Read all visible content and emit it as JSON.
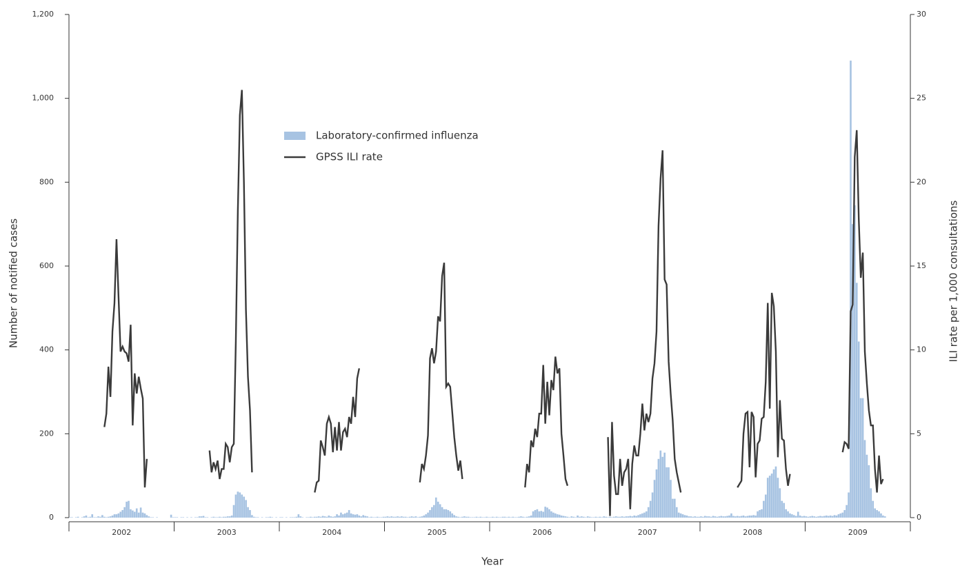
{
  "chart_data": {
    "type": "combo",
    "x_label": "Year",
    "y_label": "Number of notified cases",
    "y2_label": "ILI rate per 1,000 consultations",
    "categories": [
      "2002",
      "2003",
      "2004",
      "2005",
      "2006",
      "2007",
      "2008",
      "2009"
    ],
    "ylim": [
      0,
      1200
    ],
    "yticks": [
      0,
      200,
      400,
      600,
      800,
      {
        "value": 1000,
        "label": "1,000"
      },
      {
        "value": 1200,
        "label": "1,200"
      }
    ],
    "y2lim": [
      0,
      30
    ],
    "y2ticks": [
      0,
      5,
      10,
      15,
      20,
      25,
      30
    ],
    "series": [
      {
        "name": "Laboratory-confirmed influenza",
        "type": "bar",
        "color": "#a7c3e2",
        "values": [
          [
            1,
            1,
            0,
            1,
            2,
            0,
            1,
            3,
            5,
            1,
            2,
            8,
            1,
            1,
            3,
            2,
            6,
            2,
            1,
            2,
            3,
            5,
            8,
            8,
            10,
            14,
            18,
            25,
            38,
            40,
            20,
            17,
            14,
            22,
            12,
            24,
            12,
            10,
            6,
            3,
            1,
            1,
            0,
            1,
            0,
            0,
            0,
            0,
            0,
            0,
            7,
            1
          ],
          [
            1,
            1,
            0,
            1,
            1,
            0,
            1,
            0,
            1,
            0,
            1,
            1,
            3,
            3,
            4,
            1,
            1,
            0,
            1,
            2,
            1,
            1,
            2,
            1,
            2,
            2,
            3,
            3,
            5,
            30,
            55,
            62,
            60,
            55,
            50,
            42,
            25,
            18,
            6,
            2,
            1,
            1,
            0,
            1,
            0,
            1,
            1,
            2,
            1,
            0,
            1,
            0
          ],
          [
            1,
            1,
            0,
            1,
            0,
            1,
            1,
            1,
            2,
            8,
            3,
            1,
            0,
            1,
            1,
            2,
            1,
            2,
            2,
            3,
            2,
            4,
            3,
            2,
            5,
            3,
            2,
            3,
            8,
            5,
            12,
            8,
            10,
            12,
            18,
            10,
            8,
            7,
            8,
            5,
            3,
            6,
            4,
            3,
            1,
            2,
            1,
            1,
            2,
            1,
            1,
            2
          ],
          [
            2,
            3,
            2,
            3,
            2,
            2,
            3,
            2,
            3,
            2,
            2,
            1,
            2,
            3,
            2,
            3,
            1,
            2,
            3,
            5,
            8,
            12,
            18,
            25,
            30,
            48,
            38,
            32,
            25,
            20,
            20,
            18,
            15,
            10,
            6,
            3,
            2,
            1,
            2,
            3,
            2,
            2,
            1,
            1,
            1,
            2,
            1,
            2,
            1,
            1,
            2,
            1
          ],
          [
            1,
            2,
            1,
            2,
            1,
            1,
            2,
            2,
            1,
            2,
            1,
            2,
            1,
            1,
            2,
            3,
            2,
            1,
            2,
            3,
            5,
            15,
            18,
            20,
            15,
            16,
            14,
            26,
            24,
            20,
            15,
            12,
            10,
            8,
            7,
            5,
            4,
            3,
            2,
            1,
            3,
            2,
            1,
            5,
            2,
            3,
            2,
            1,
            3,
            2,
            1,
            1
          ],
          [
            2,
            1,
            2,
            1,
            3,
            2,
            1,
            2,
            1,
            2,
            3,
            2,
            2,
            3,
            2,
            3,
            3,
            4,
            3,
            5,
            4,
            6,
            8,
            10,
            12,
            15,
            25,
            40,
            60,
            90,
            115,
            140,
            160,
            145,
            155,
            120,
            120,
            90,
            45,
            45,
            25,
            12,
            10,
            8,
            6,
            5,
            3,
            3,
            2,
            3,
            2,
            2
          ],
          [
            3,
            2,
            4,
            3,
            3,
            2,
            4,
            3,
            2,
            3,
            4,
            3,
            3,
            4,
            5,
            10,
            4,
            3,
            4,
            3,
            4,
            5,
            3,
            4,
            5,
            5,
            6,
            5,
            15,
            18,
            20,
            40,
            55,
            95,
            100,
            105,
            115,
            122,
            95,
            70,
            40,
            35,
            20,
            15,
            10,
            8,
            6,
            4,
            14,
            5,
            3,
            4
          ],
          [
            3,
            2,
            3,
            4,
            3,
            2,
            3,
            4,
            3,
            4,
            5,
            4,
            5,
            4,
            6,
            5,
            8,
            10,
            12,
            18,
            30,
            60,
            1090,
            700,
            745,
            560,
            420,
            285,
            285,
            185,
            150,
            125,
            70,
            40,
            22,
            18,
            15,
            10,
            5,
            3,
            null,
            null,
            null,
            null,
            null,
            null,
            null,
            null,
            null,
            null,
            null,
            null
          ]
        ]
      },
      {
        "name": "GPSS ILI rate",
        "type": "line",
        "axis": "y2",
        "color": "#3a3a3a",
        "values": [
          [
            null,
            null,
            null,
            null,
            null,
            null,
            null,
            null,
            null,
            null,
            null,
            null,
            null,
            null,
            null,
            null,
            null,
            5.4,
            6.2,
            9.0,
            7.2,
            11.1,
            12.8,
            16.6,
            13.2,
            9.9,
            10.2,
            9.9,
            9.8,
            9.3,
            11.5,
            5.5,
            8.6,
            7.4,
            8.4,
            7.7,
            7.1,
            1.8,
            3.5,
            null,
            null,
            null,
            null,
            null,
            null,
            null,
            null,
            null,
            null,
            null,
            null,
            null
          ],
          [
            null,
            null,
            null,
            null,
            null,
            null,
            null,
            null,
            null,
            null,
            null,
            null,
            null,
            null,
            null,
            null,
            null,
            4.0,
            2.7,
            3.3,
            2.9,
            3.4,
            2.3,
            2.9,
            2.9,
            4.4,
            4.2,
            3.3,
            4.2,
            4.4,
            10.5,
            18.3,
            24.0,
            25.5,
            20.0,
            12.4,
            8.4,
            6.4,
            2.7,
            null,
            null,
            null,
            null,
            null,
            null,
            null,
            null,
            null,
            null,
            null,
            null,
            null
          ],
          [
            null,
            null,
            null,
            null,
            null,
            null,
            null,
            null,
            null,
            null,
            null,
            null,
            null,
            null,
            null,
            null,
            null,
            1.5,
            2.1,
            2.2,
            4.6,
            4.2,
            3.7,
            5.6,
            6.0,
            5.6,
            3.9,
            5.4,
            4.0,
            5.7,
            4.0,
            5.1,
            5.3,
            4.8,
            6.0,
            5.6,
            7.2,
            6.0,
            8.3,
            8.9,
            null,
            null,
            null,
            null,
            null,
            null,
            null,
            null,
            null,
            null,
            null,
            null
          ],
          [
            null,
            null,
            null,
            null,
            null,
            null,
            null,
            null,
            null,
            null,
            null,
            null,
            null,
            null,
            null,
            null,
            null,
            2.1,
            3.2,
            2.9,
            3.7,
            4.9,
            9.5,
            10.1,
            9.2,
            9.9,
            12.0,
            11.7,
            14.4,
            15.2,
            7.8,
            8.0,
            7.8,
            6.3,
            4.8,
            3.7,
            2.8,
            3.4,
            2.3,
            null,
            null,
            null,
            null,
            null,
            null,
            null,
            null,
            null,
            null,
            null,
            null,
            null
          ],
          [
            null,
            null,
            null,
            null,
            null,
            null,
            null,
            null,
            null,
            null,
            null,
            null,
            null,
            null,
            null,
            null,
            null,
            1.8,
            3.2,
            2.7,
            4.6,
            4.2,
            5.3,
            4.8,
            6.2,
            6.2,
            9.1,
            5.6,
            8.1,
            6.1,
            8.2,
            7.6,
            9.6,
            8.6,
            8.9,
            5.0,
            3.7,
            2.3,
            1.9,
            null,
            null,
            null,
            null,
            null,
            null,
            null,
            null,
            null,
            null,
            null,
            null,
            null
          ],
          [
            null,
            null,
            null,
            null,
            null,
            null,
            4.8,
            0.1,
            5.7,
            2.5,
            1.4,
            1.4,
            3.5,
            1.9,
            2.7,
            2.9,
            3.5,
            0.5,
            3.2,
            4.3,
            3.7,
            3.7,
            5.0,
            6.8,
            5.2,
            6.2,
            5.7,
            6.2,
            8.3,
            9.2,
            11.1,
            17.4,
            20.2,
            21.9,
            14.2,
            13.9,
            9.3,
            7.4,
            5.8,
            3.5,
            2.7,
            2.1,
            1.5,
            null,
            null,
            null,
            null,
            null,
            null,
            null,
            null,
            null
          ],
          [
            null,
            null,
            null,
            null,
            null,
            null,
            null,
            null,
            null,
            null,
            null,
            null,
            null,
            null,
            null,
            null,
            null,
            null,
            1.8,
            2.0,
            2.2,
            5.0,
            6.2,
            6.3,
            3.0,
            6.3,
            6.0,
            2.4,
            4.4,
            4.6,
            5.9,
            6.0,
            8.1,
            12.8,
            6.5,
            13.4,
            12.6,
            9.9,
            3.6,
            7.0,
            4.7,
            4.6,
            2.9,
            1.9,
            2.6,
            null,
            null,
            null,
            null,
            null,
            null,
            null
          ],
          [
            null,
            null,
            null,
            null,
            null,
            null,
            null,
            null,
            null,
            null,
            null,
            null,
            null,
            null,
            null,
            null,
            null,
            null,
            3.9,
            4.5,
            4.4,
            4.1,
            12.3,
            12.7,
            21.5,
            23.1,
            17.8,
            14.3,
            15.8,
            9.9,
            8.0,
            6.4,
            5.5,
            5.5,
            2.9,
            1.5,
            3.7,
            2.0,
            2.3,
            null,
            null,
            null,
            null,
            null,
            null,
            null,
            null,
            null,
            null,
            null,
            null,
            null
          ]
        ]
      }
    ]
  }
}
